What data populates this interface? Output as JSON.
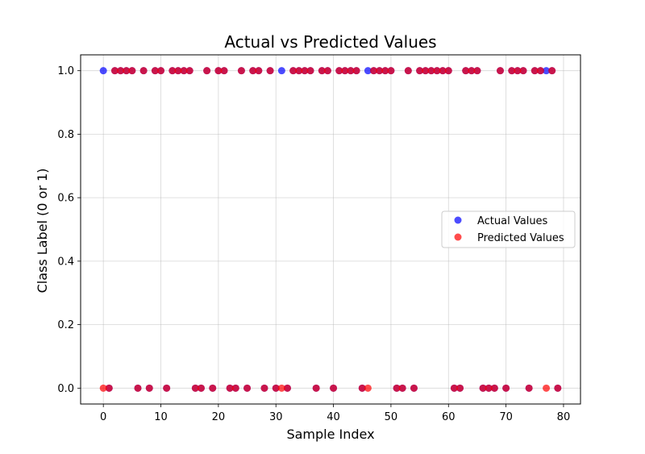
{
  "chart_data": {
    "type": "scatter",
    "title": "Actual vs Predicted Values",
    "xlabel": "Sample Index",
    "ylabel": "Class Label (0 or 1)",
    "xlim": [
      -3.95,
      82.95
    ],
    "ylim": [
      -0.05,
      1.05
    ],
    "x_ticks": [
      0,
      10,
      20,
      30,
      40,
      50,
      60,
      70,
      80
    ],
    "y_ticks": [
      0.0,
      0.2,
      0.4,
      0.6,
      0.8,
      1.0
    ],
    "x_tick_labels": [
      "0",
      "10",
      "20",
      "30",
      "40",
      "50",
      "60",
      "70",
      "80"
    ],
    "y_tick_labels": [
      "0.0",
      "0.2",
      "0.4",
      "0.6",
      "0.8",
      "1.0"
    ],
    "grid": true,
    "legend_position": "right",
    "x": [
      0,
      1,
      2,
      3,
      4,
      5,
      6,
      7,
      8,
      9,
      10,
      11,
      12,
      13,
      14,
      15,
      16,
      17,
      18,
      19,
      20,
      21,
      22,
      23,
      24,
      25,
      26,
      27,
      28,
      29,
      30,
      31,
      32,
      33,
      34,
      35,
      36,
      37,
      38,
      39,
      40,
      41,
      42,
      43,
      44,
      45,
      46,
      47,
      48,
      49,
      50,
      51,
      52,
      53,
      54,
      55,
      56,
      57,
      58,
      59,
      60,
      61,
      62,
      63,
      64,
      65,
      66,
      67,
      68,
      69,
      70,
      71,
      72,
      73,
      74,
      75,
      76,
      77,
      78,
      79
    ],
    "series": [
      {
        "name": "Actual Values",
        "color": "#0000ff",
        "values": [
          1,
          0,
          1,
          1,
          1,
          1,
          0,
          1,
          0,
          1,
          1,
          0,
          1,
          1,
          1,
          1,
          0,
          0,
          1,
          0,
          1,
          1,
          0,
          0,
          1,
          0,
          1,
          1,
          0,
          1,
          0,
          1,
          0,
          1,
          1,
          1,
          1,
          0,
          1,
          1,
          0,
          1,
          1,
          1,
          1,
          0,
          1,
          1,
          1,
          1,
          1,
          0,
          0,
          1,
          0,
          1,
          1,
          1,
          1,
          1,
          1,
          0,
          0,
          1,
          1,
          1,
          0,
          0,
          0,
          1,
          0,
          1,
          1,
          1,
          0,
          1,
          1,
          1,
          1,
          0
        ]
      },
      {
        "name": "Predicted Values",
        "color": "#ff0000",
        "values": [
          0,
          0,
          1,
          1,
          1,
          1,
          0,
          1,
          0,
          1,
          1,
          0,
          1,
          1,
          1,
          1,
          0,
          0,
          1,
          0,
          1,
          1,
          0,
          0,
          1,
          0,
          1,
          1,
          0,
          1,
          0,
          0,
          0,
          1,
          1,
          1,
          1,
          0,
          1,
          1,
          0,
          1,
          1,
          1,
          1,
          0,
          0,
          1,
          1,
          1,
          1,
          0,
          0,
          1,
          0,
          1,
          1,
          1,
          1,
          1,
          1,
          0,
          0,
          1,
          1,
          1,
          0,
          0,
          0,
          1,
          0,
          1,
          1,
          1,
          0,
          1,
          1,
          0,
          1,
          0
        ]
      }
    ]
  }
}
